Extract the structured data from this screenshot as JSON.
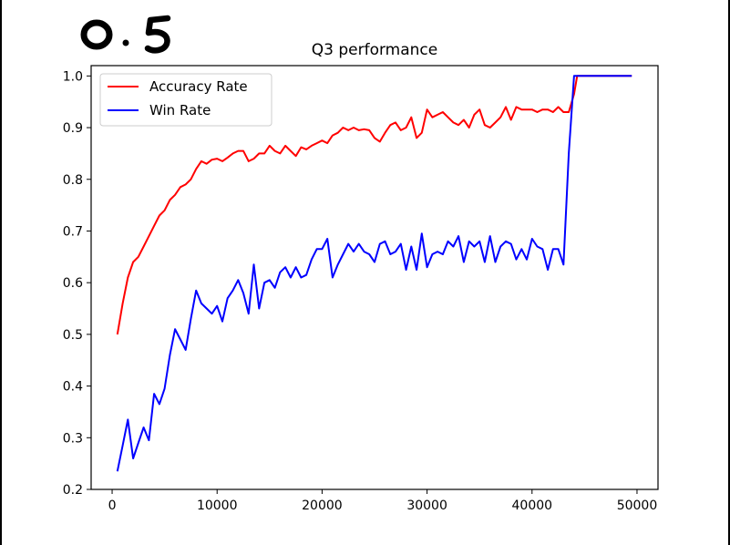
{
  "annotation": {
    "handwritten_text": "0.5"
  },
  "chart_data": {
    "type": "line",
    "title": "Q3 performance",
    "xlabel": "",
    "ylabel": "",
    "xlim": [
      -2000,
      52000
    ],
    "ylim": [
      0.2,
      1.02
    ],
    "x_ticks": [
      0,
      10000,
      20000,
      30000,
      40000,
      50000
    ],
    "x_tick_labels": [
      "0",
      "10000",
      "20000",
      "30000",
      "40000",
      "50000"
    ],
    "y_ticks": [
      0.2,
      0.3,
      0.4,
      0.5,
      0.6,
      0.7,
      0.8,
      0.9,
      1.0
    ],
    "y_tick_labels": [
      "0.2",
      "0.3",
      "0.4",
      "0.5",
      "0.6",
      "0.7",
      "0.8",
      "0.9",
      "1.0"
    ],
    "grid": false,
    "legend_position": "top-left",
    "series": [
      {
        "name": "Accuracy Rate",
        "color": "#ff0000",
        "points": [
          [
            500,
            0.5
          ],
          [
            1000,
            0.56
          ],
          [
            1500,
            0.61
          ],
          [
            2000,
            0.64
          ],
          [
            2500,
            0.65
          ],
          [
            3000,
            0.67
          ],
          [
            3500,
            0.69
          ],
          [
            4000,
            0.71
          ],
          [
            4500,
            0.73
          ],
          [
            5000,
            0.74
          ],
          [
            5500,
            0.76
          ],
          [
            6000,
            0.77
          ],
          [
            6500,
            0.785
          ],
          [
            7000,
            0.79
          ],
          [
            7500,
            0.8
          ],
          [
            8000,
            0.82
          ],
          [
            8500,
            0.835
          ],
          [
            9000,
            0.83
          ],
          [
            9500,
            0.838
          ],
          [
            10000,
            0.84
          ],
          [
            10500,
            0.835
          ],
          [
            11000,
            0.842
          ],
          [
            11500,
            0.85
          ],
          [
            12000,
            0.855
          ],
          [
            12500,
            0.855
          ],
          [
            13000,
            0.835
          ],
          [
            13500,
            0.84
          ],
          [
            14000,
            0.85
          ],
          [
            14500,
            0.85
          ],
          [
            15000,
            0.865
          ],
          [
            15500,
            0.855
          ],
          [
            16000,
            0.85
          ],
          [
            16500,
            0.865
          ],
          [
            17000,
            0.855
          ],
          [
            17500,
            0.845
          ],
          [
            18000,
            0.862
          ],
          [
            18500,
            0.858
          ],
          [
            19000,
            0.865
          ],
          [
            19500,
            0.87
          ],
          [
            20000,
            0.875
          ],
          [
            20500,
            0.87
          ],
          [
            21000,
            0.885
          ],
          [
            21500,
            0.89
          ],
          [
            22000,
            0.9
          ],
          [
            22500,
            0.895
          ],
          [
            23000,
            0.9
          ],
          [
            23500,
            0.895
          ],
          [
            24000,
            0.897
          ],
          [
            24500,
            0.895
          ],
          [
            25000,
            0.88
          ],
          [
            25500,
            0.873
          ],
          [
            26000,
            0.89
          ],
          [
            26500,
            0.905
          ],
          [
            27000,
            0.91
          ],
          [
            27500,
            0.895
          ],
          [
            28000,
            0.9
          ],
          [
            28500,
            0.92
          ],
          [
            29000,
            0.88
          ],
          [
            29500,
            0.89
          ],
          [
            30000,
            0.935
          ],
          [
            30500,
            0.92
          ],
          [
            31000,
            0.925
          ],
          [
            31500,
            0.93
          ],
          [
            32000,
            0.92
          ],
          [
            32500,
            0.91
          ],
          [
            33000,
            0.905
          ],
          [
            33500,
            0.915
          ],
          [
            34000,
            0.9
          ],
          [
            34500,
            0.925
          ],
          [
            35000,
            0.935
          ],
          [
            35500,
            0.905
          ],
          [
            36000,
            0.9
          ],
          [
            36500,
            0.91
          ],
          [
            37000,
            0.92
          ],
          [
            37500,
            0.94
          ],
          [
            38000,
            0.915
          ],
          [
            38500,
            0.94
          ],
          [
            39000,
            0.935
          ],
          [
            39500,
            0.935
          ],
          [
            40000,
            0.935
          ],
          [
            40500,
            0.93
          ],
          [
            41000,
            0.935
          ],
          [
            41500,
            0.935
          ],
          [
            42000,
            0.93
          ],
          [
            42500,
            0.94
          ],
          [
            43000,
            0.93
          ],
          [
            43500,
            0.93
          ],
          [
            44000,
            0.965
          ],
          [
            44300,
            1.0
          ],
          [
            45000,
            1.0
          ],
          [
            46000,
            1.0
          ],
          [
            47000,
            1.0
          ],
          [
            48000,
            1.0
          ],
          [
            49000,
            1.0
          ],
          [
            49500,
            1.0
          ]
        ]
      },
      {
        "name": "Win Rate",
        "color": "#0000ff",
        "points": [
          [
            500,
            0.235
          ],
          [
            1000,
            0.285
          ],
          [
            1500,
            0.335
          ],
          [
            2000,
            0.26
          ],
          [
            2500,
            0.29
          ],
          [
            3000,
            0.32
          ],
          [
            3500,
            0.295
          ],
          [
            4000,
            0.385
          ],
          [
            4500,
            0.365
          ],
          [
            5000,
            0.395
          ],
          [
            5500,
            0.46
          ],
          [
            6000,
            0.51
          ],
          [
            6500,
            0.49
          ],
          [
            7000,
            0.47
          ],
          [
            7500,
            0.53
          ],
          [
            8000,
            0.585
          ],
          [
            8500,
            0.56
          ],
          [
            9000,
            0.55
          ],
          [
            9500,
            0.54
          ],
          [
            10000,
            0.555
          ],
          [
            10500,
            0.525
          ],
          [
            11000,
            0.57
          ],
          [
            11500,
            0.585
          ],
          [
            12000,
            0.605
          ],
          [
            12500,
            0.58
          ],
          [
            13000,
            0.54
          ],
          [
            13500,
            0.635
          ],
          [
            14000,
            0.55
          ],
          [
            14500,
            0.6
          ],
          [
            15000,
            0.605
          ],
          [
            15500,
            0.59
          ],
          [
            16000,
            0.62
          ],
          [
            16500,
            0.63
          ],
          [
            17000,
            0.61
          ],
          [
            17500,
            0.63
          ],
          [
            18000,
            0.61
          ],
          [
            18500,
            0.615
          ],
          [
            19000,
            0.645
          ],
          [
            19500,
            0.665
          ],
          [
            20000,
            0.665
          ],
          [
            20500,
            0.685
          ],
          [
            21000,
            0.61
          ],
          [
            21500,
            0.635
          ],
          [
            22000,
            0.655
          ],
          [
            22500,
            0.675
          ],
          [
            23000,
            0.66
          ],
          [
            23500,
            0.675
          ],
          [
            24000,
            0.66
          ],
          [
            24500,
            0.655
          ],
          [
            25000,
            0.64
          ],
          [
            25500,
            0.675
          ],
          [
            26000,
            0.68
          ],
          [
            26500,
            0.655
          ],
          [
            27000,
            0.66
          ],
          [
            27500,
            0.675
          ],
          [
            28000,
            0.625
          ],
          [
            28500,
            0.67
          ],
          [
            29000,
            0.625
          ],
          [
            29500,
            0.695
          ],
          [
            30000,
            0.63
          ],
          [
            30500,
            0.655
          ],
          [
            31000,
            0.66
          ],
          [
            31500,
            0.655
          ],
          [
            32000,
            0.68
          ],
          [
            32500,
            0.67
          ],
          [
            33000,
            0.69
          ],
          [
            33500,
            0.64
          ],
          [
            34000,
            0.68
          ],
          [
            34500,
            0.67
          ],
          [
            35000,
            0.68
          ],
          [
            35500,
            0.64
          ],
          [
            36000,
            0.69
          ],
          [
            36500,
            0.64
          ],
          [
            37000,
            0.67
          ],
          [
            37500,
            0.68
          ],
          [
            38000,
            0.675
          ],
          [
            38500,
            0.645
          ],
          [
            39000,
            0.665
          ],
          [
            39500,
            0.645
          ],
          [
            40000,
            0.685
          ],
          [
            40500,
            0.67
          ],
          [
            41000,
            0.665
          ],
          [
            41500,
            0.625
          ],
          [
            42000,
            0.665
          ],
          [
            42500,
            0.665
          ],
          [
            43000,
            0.635
          ],
          [
            43500,
            0.85
          ],
          [
            44000,
            1.0
          ],
          [
            45000,
            1.0
          ],
          [
            46000,
            1.0
          ],
          [
            47000,
            1.0
          ],
          [
            48000,
            1.0
          ],
          [
            49000,
            1.0
          ],
          [
            49500,
            1.0
          ]
        ]
      }
    ]
  }
}
